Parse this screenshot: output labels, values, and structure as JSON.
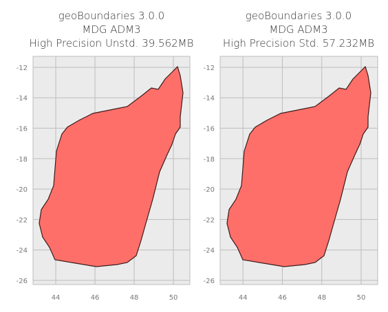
{
  "chart_data": [
    {
      "type": "map",
      "title": [
        "geoBoundaries 3.0.0",
        "MDG ADM3",
        "High Precision Unstd. 39.562MB"
      ],
      "xlim": [
        42.84,
        50.84
      ],
      "ylim": [
        -26.27,
        -11.28
      ],
      "xticks": [
        44,
        46,
        48,
        50
      ],
      "yticks": [
        -12,
        -14,
        -16,
        -18,
        -20,
        -22,
        -24,
        -26
      ],
      "grid": true,
      "color": "#ff6f69"
    },
    {
      "type": "map",
      "title": [
        "geoBoundaries 3.0.0",
        "MDG ADM3",
        "High Precision Std. 57.232MB"
      ],
      "xlim": [
        42.84,
        50.84
      ],
      "ylim": [
        -26.27,
        -11.28
      ],
      "xticks": [
        44,
        46,
        48,
        50
      ],
      "yticks": [
        -12,
        -14,
        -16,
        -18,
        -20,
        -22,
        -24,
        -26
      ],
      "grid": true,
      "color": "#ff6f69"
    }
  ]
}
